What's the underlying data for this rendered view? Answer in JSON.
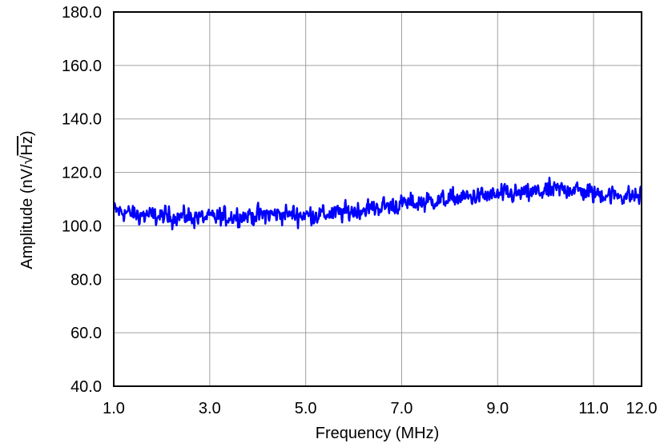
{
  "chart_data": {
    "type": "line",
    "title": "",
    "xlabel": "Frequency (MHz)",
    "ylabel": "Amplitude (nV/√Hz)",
    "ylabel_parts": {
      "prefix": "Amplitude (nV/",
      "radical": "√",
      "radicand": "Hz",
      "suffix": ")"
    },
    "xlim": [
      1.0,
      12.0
    ],
    "ylim": [
      40.0,
      180.0
    ],
    "x_ticks": [
      1.0,
      3.0,
      5.0,
      7.0,
      9.0,
      11.0,
      12.0
    ],
    "x_tick_labels": [
      "1.0",
      "3.0",
      "5.0",
      "7.0",
      "9.0",
      "11.0",
      "12.0"
    ],
    "y_ticks": [
      40.0,
      60.0,
      80.0,
      100.0,
      120.0,
      140.0,
      160.0,
      180.0
    ],
    "y_tick_labels": [
      "40.0",
      "60.0",
      "80.0",
      "100.0",
      "120.0",
      "140.0",
      "160.0",
      "180.0"
    ],
    "grid": true,
    "legend": "none",
    "series": [
      {
        "color": "#0000ff",
        "x": [
          1.0,
          1.5,
          2.0,
          2.5,
          3.0,
          3.5,
          4.0,
          4.5,
          5.0,
          5.5,
          6.0,
          6.5,
          7.0,
          7.5,
          8.0,
          8.5,
          9.0,
          9.5,
          10.0,
          10.5,
          11.0,
          11.5,
          12.0
        ],
        "values": [
          106,
          104,
          103.5,
          103.5,
          103,
          103.5,
          104,
          104.5,
          104,
          104.5,
          105.5,
          107,
          108,
          109,
          110,
          111,
          111.5,
          112,
          113,
          114,
          112,
          111.5,
          111
        ],
        "noise_amplitude": 5.5,
        "sample_count": 1100
      }
    ]
  }
}
